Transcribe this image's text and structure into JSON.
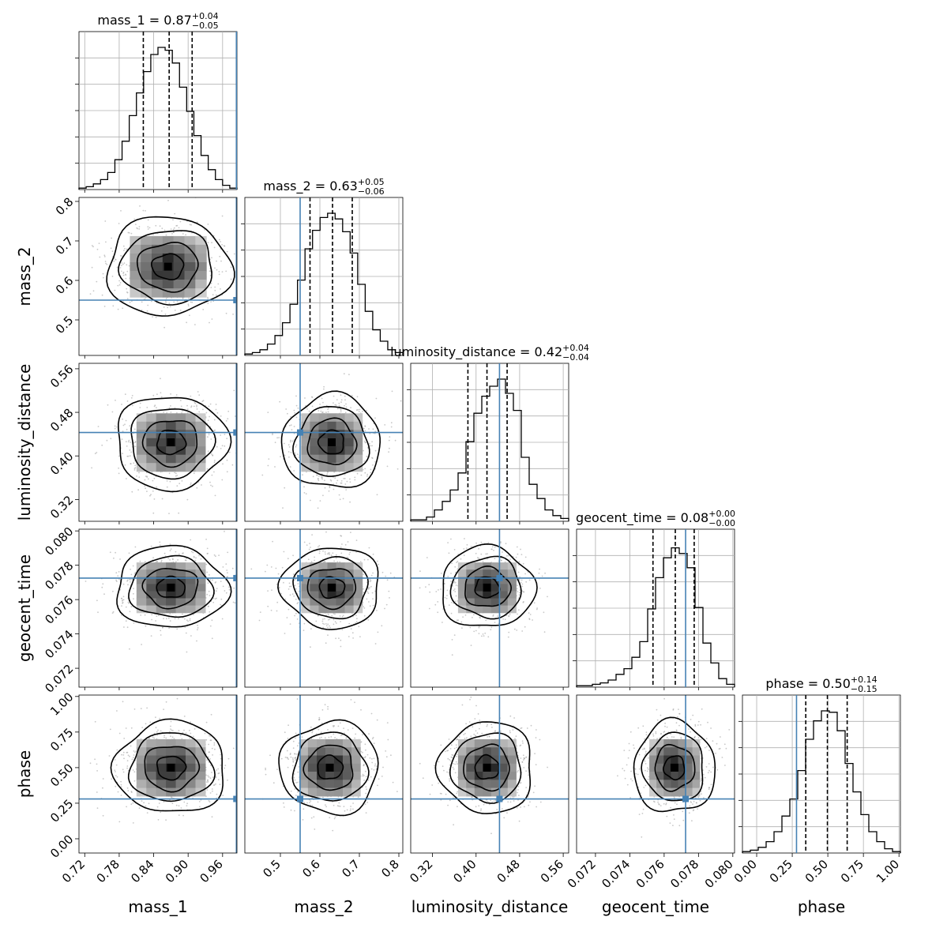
{
  "chart_data": {
    "type": "scatter",
    "subtype": "corner-plot",
    "grid": true,
    "truth_color": "#4682b4",
    "hist_color": "#000000",
    "parameters": [
      {
        "name": "mass_1",
        "title_value": "0.87",
        "title_plus": "+0.04",
        "title_minus": "−0.05",
        "range": [
          0.71,
          0.985
        ],
        "ticks": [
          0.72,
          0.78,
          0.84,
          0.9,
          0.96
        ],
        "tick_labels": [
          "0.72",
          "0.78",
          "0.84",
          "0.90",
          "0.96"
        ],
        "median": 0.867,
        "q16": 0.822,
        "q84": 0.907,
        "truth": 0.984,
        "hist": [
          0.01,
          0.02,
          0.04,
          0.07,
          0.12,
          0.21,
          0.34,
          0.52,
          0.68,
          0.83,
          0.95,
          1.0,
          0.98,
          0.89,
          0.72,
          0.55,
          0.38,
          0.24,
          0.14,
          0.07,
          0.03,
          0.01
        ]
      },
      {
        "name": "mass_2",
        "title_value": "0.63",
        "title_plus": "+0.05",
        "title_minus": "−0.06",
        "range": [
          0.41,
          0.81
        ],
        "ticks": [
          0.5,
          0.6,
          0.7,
          0.8
        ],
        "tick_labels": [
          "0.5",
          "0.6",
          "0.7",
          "0.8"
        ],
        "median": 0.632,
        "q16": 0.575,
        "q84": 0.682,
        "truth": 0.55,
        "hist": [
          0.01,
          0.02,
          0.04,
          0.08,
          0.14,
          0.23,
          0.36,
          0.53,
          0.75,
          0.88,
          0.97,
          1.0,
          0.96,
          0.87,
          0.72,
          0.5,
          0.31,
          0.18,
          0.1,
          0.04,
          0.02
        ]
      },
      {
        "name": "luminosity_distance",
        "title_value": "0.42",
        "title_plus": "+0.04",
        "title_minus": "−0.04",
        "range": [
          0.28,
          0.57
        ],
        "ticks": [
          0.32,
          0.4,
          0.48,
          0.56
        ],
        "tick_labels": [
          "0.32",
          "0.40",
          "0.48",
          "0.56"
        ],
        "median": 0.42,
        "q16": 0.385,
        "q84": 0.457,
        "truth": 0.443,
        "hist": [
          0.01,
          0.01,
          0.03,
          0.08,
          0.14,
          0.22,
          0.34,
          0.56,
          0.76,
          0.88,
          0.95,
          1.0,
          0.9,
          0.78,
          0.45,
          0.26,
          0.16,
          0.08,
          0.04,
          0.02
        ]
      },
      {
        "name": "geocent_time",
        "title_value": "0.08",
        "title_plus": "+0.00",
        "title_minus": "−0.00",
        "range": [
          0.0709,
          0.0801
        ],
        "ticks": [
          0.072,
          0.074,
          0.076,
          0.078,
          0.08
        ],
        "tick_labels": [
          "0.072",
          "0.074",
          "0.076",
          "0.078",
          "0.080"
        ],
        "median": 0.07665,
        "q16": 0.07535,
        "q84": 0.07775,
        "truth": 0.07725,
        "hist": [
          0.01,
          0.01,
          0.02,
          0.03,
          0.05,
          0.09,
          0.13,
          0.21,
          0.32,
          0.55,
          0.77,
          0.91,
          0.98,
          0.94,
          0.84,
          0.56,
          0.31,
          0.17,
          0.06,
          0.02
        ]
      },
      {
        "name": "phase",
        "title_value": "0.50",
        "title_plus": "+0.14",
        "title_minus": "−0.15",
        "range": [
          -0.1,
          1.01
        ],
        "ticks": [
          0.0,
          0.25,
          0.5,
          0.75,
          1.0
        ],
        "tick_labels": [
          "0.00",
          "0.25",
          "0.50",
          "0.75",
          "1.00"
        ],
        "median": 0.497,
        "q16": 0.345,
        "q84": 0.636,
        "truth": 0.28,
        "hist": [
          0.01,
          0.02,
          0.04,
          0.08,
          0.15,
          0.26,
          0.38,
          0.58,
          0.8,
          0.93,
          1.0,
          0.99,
          0.86,
          0.63,
          0.43,
          0.27,
          0.15,
          0.08,
          0.03,
          0.01
        ]
      }
    ],
    "pairs": [
      {
        "row": 1,
        "col": 0,
        "mean": [
          0.865,
          0.635
        ],
        "sd": [
          0.05,
          0.058
        ]
      },
      {
        "row": 2,
        "col": 0,
        "mean": [
          0.87,
          0.425
        ],
        "sd": [
          0.045,
          0.04
        ]
      },
      {
        "row": 2,
        "col": 1,
        "mean": [
          0.63,
          0.425
        ],
        "sd": [
          0.058,
          0.04
        ]
      },
      {
        "row": 3,
        "col": 0,
        "mean": [
          0.87,
          0.0767
        ],
        "sd": [
          0.045,
          0.0011
        ]
      },
      {
        "row": 3,
        "col": 1,
        "mean": [
          0.63,
          0.0767
        ],
        "sd": [
          0.058,
          0.0011
        ]
      },
      {
        "row": 3,
        "col": 2,
        "mean": [
          0.42,
          0.0767
        ],
        "sd": [
          0.04,
          0.0011
        ]
      },
      {
        "row": 4,
        "col": 0,
        "mean": [
          0.87,
          0.5
        ],
        "sd": [
          0.045,
          0.15
        ]
      },
      {
        "row": 4,
        "col": 1,
        "mean": [
          0.625,
          0.5
        ],
        "sd": [
          0.058,
          0.15
        ]
      },
      {
        "row": 4,
        "col": 2,
        "mean": [
          0.42,
          0.5
        ],
        "sd": [
          0.04,
          0.15
        ]
      },
      {
        "row": 4,
        "col": 3,
        "mean": [
          0.0766,
          0.5
        ],
        "sd": [
          0.0011,
          0.15
        ]
      }
    ]
  }
}
